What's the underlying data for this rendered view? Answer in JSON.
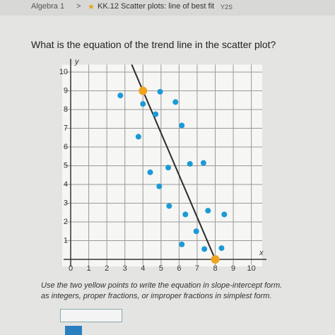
{
  "header": {
    "course": "Algebra 1",
    "separator": ">",
    "lesson": "KK.12 Scatter plots: line of best fit",
    "code": "Y2S"
  },
  "question": "What is the equation of the trend line in the scatter plot?",
  "chart_data": {
    "type": "scatter",
    "x_label": "x",
    "y_label": "y",
    "xlim": [
      0,
      10.6
    ],
    "ylim": [
      0,
      10.4
    ],
    "xticks": [
      0,
      1,
      2,
      3,
      4,
      5,
      6,
      7,
      8,
      9,
      10
    ],
    "yticks": [
      1,
      2,
      3,
      4,
      5,
      6,
      7,
      8,
      9,
      10
    ],
    "grid": true,
    "series": [
      {
        "color": "#1b9ad6",
        "x": [
          2.75,
          4,
          4.95,
          5.8,
          4.7,
          3.75,
          6.15,
          4.4,
          5.4,
          4.9,
          6.6,
          7.35,
          5.45,
          6.35,
          7.6,
          8.5,
          6.95,
          6.15,
          7.4,
          8.35
        ],
        "values": [
          8.75,
          8.3,
          8.95,
          8.4,
          7.75,
          6.55,
          7.15,
          4.65,
          4.9,
          3.9,
          5.1,
          5.15,
          2.85,
          2.4,
          2.6,
          2.4,
          1.5,
          0.8,
          0.55,
          0.6
        ]
      },
      {
        "color": "#f0a41e",
        "x": [
          4,
          8
        ],
        "values": [
          9,
          0
        ]
      }
    ],
    "trend_line_color": "#2a2a2a"
  },
  "instructions": [
    "Use the two yellow points to write the equation in slope-intercept form.",
    "as integers, proper fractions, or improper fractions in simplest form."
  ]
}
